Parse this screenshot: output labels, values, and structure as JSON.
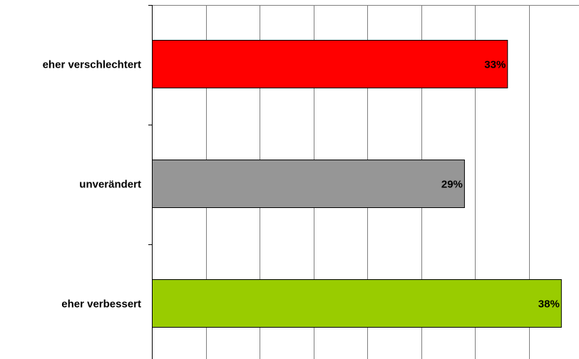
{
  "chart_data": {
    "type": "bar",
    "orientation": "horizontal",
    "categories": [
      "eher verschlechtert",
      "unverändert",
      "eher verbessert"
    ],
    "values": [
      33,
      29,
      38
    ],
    "value_labels": [
      "33%",
      "29%",
      "38%"
    ],
    "colors": [
      "#ff0000",
      "#969696",
      "#99cc00"
    ],
    "xlim": [
      0,
      40
    ],
    "x_gridline_step": 5,
    "grid": true,
    "legend": "none",
    "title": "",
    "xlabel": "",
    "ylabel": ""
  }
}
